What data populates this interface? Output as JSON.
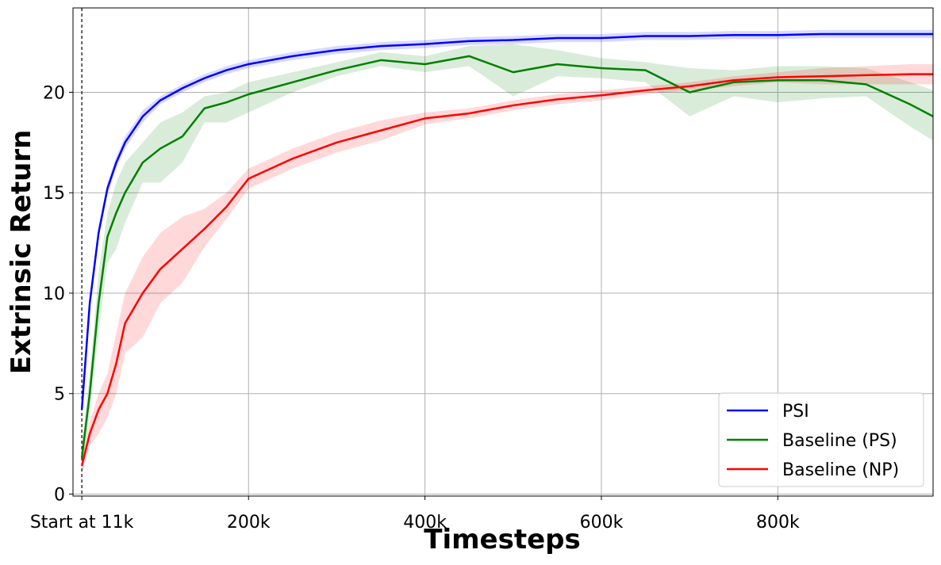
{
  "chart_data": {
    "type": "line",
    "xlabel": "Timesteps",
    "ylabel": "Extrinsic Return",
    "xlim": [
      1000,
      976000
    ],
    "ylim": [
      -0.1,
      24.2
    ],
    "xticks": [
      {
        "value": 11000,
        "label": "Start at 11k"
      },
      {
        "value": 200000,
        "label": "200k"
      },
      {
        "value": 400000,
        "label": "400k"
      },
      {
        "value": 600000,
        "label": "600k"
      },
      {
        "value": 800000,
        "label": "800k"
      }
    ],
    "yticks": [
      0,
      5,
      10,
      15,
      20
    ],
    "marker_line": {
      "x": 11000,
      "style": "dashed"
    },
    "grid": true,
    "legend": "lower right",
    "x": [
      11000,
      20000,
      30000,
      40000,
      50000,
      60000,
      80000,
      100000,
      125000,
      150000,
      175000,
      200000,
      250000,
      300000,
      350000,
      400000,
      450000,
      500000,
      550000,
      600000,
      650000,
      700000,
      750000,
      800000,
      850000,
      900000,
      950000,
      976000
    ],
    "series": [
      {
        "name": "PSI",
        "color": "#0000ff",
        "values": [
          4.2,
          9.5,
          13,
          15.2,
          16.5,
          17.5,
          18.8,
          19.6,
          20.2,
          20.7,
          21.1,
          21.4,
          21.8,
          22.1,
          22.3,
          22.4,
          22.55,
          22.6,
          22.7,
          22.7,
          22.8,
          22.8,
          22.85,
          22.85,
          22.9,
          22.9,
          22.9,
          22.9
        ],
        "lower": [
          3.9,
          9.1,
          12.7,
          14.9,
          16.2,
          17.2,
          18.5,
          19.4,
          20,
          20.5,
          20.9,
          21.2,
          21.6,
          21.9,
          22.1,
          22.2,
          22.35,
          22.4,
          22.5,
          22.5,
          22.6,
          22.6,
          22.65,
          22.65,
          22.7,
          22.7,
          22.7,
          22.7
        ],
        "upper": [
          4.5,
          9.9,
          13.3,
          15.5,
          16.8,
          17.8,
          19.1,
          19.8,
          20.4,
          20.9,
          21.3,
          21.6,
          22,
          22.3,
          22.5,
          22.6,
          22.75,
          22.8,
          22.9,
          22.9,
          23,
          23,
          23.05,
          23.05,
          23.1,
          23.1,
          23.1,
          23.1
        ]
      },
      {
        "name": "Baseline (PS)",
        "color": "#008000",
        "values": [
          1.8,
          5,
          9.5,
          12.8,
          14,
          15,
          16.5,
          17.2,
          17.8,
          19.2,
          19.5,
          19.9,
          20.5,
          21.1,
          21.6,
          21.4,
          21.8,
          21,
          21.4,
          21.2,
          21.1,
          20,
          20.5,
          20.6,
          20.6,
          20.4,
          19.4,
          18.8
        ],
        "lower": [
          1.2,
          4,
          8,
          11.5,
          12.2,
          13.5,
          15.5,
          15.5,
          16.5,
          18.5,
          18.5,
          19,
          20,
          20.8,
          21.3,
          21,
          21.3,
          19.8,
          20.8,
          20.7,
          20.5,
          18.8,
          19.8,
          19.5,
          19.7,
          19.8,
          18.3,
          17.6
        ],
        "upper": [
          2.4,
          6,
          11,
          14,
          15.5,
          16.5,
          17.5,
          18.5,
          19,
          19.8,
          20,
          20.5,
          21,
          21.5,
          22,
          21.8,
          22.3,
          22.4,
          22.1,
          21.7,
          21.5,
          21.2,
          21.1,
          21.3,
          21.3,
          21.2,
          20.5,
          20.1
        ]
      },
      {
        "name": "Baseline (NP)",
        "color": "#ff0000",
        "values": [
          1.4,
          3,
          4.2,
          5,
          6.5,
          8.5,
          10,
          11.2,
          12.2,
          13.2,
          14.3,
          15.7,
          16.7,
          17.5,
          18.1,
          18.7,
          18.95,
          19.35,
          19.65,
          19.85,
          20.1,
          20.3,
          20.6,
          20.75,
          20.8,
          20.85,
          20.9,
          20.9
        ],
        "lower": [
          1,
          2.4,
          3,
          3.8,
          5,
          7,
          7.8,
          9.5,
          10.5,
          12.3,
          13.7,
          15.2,
          16.2,
          17,
          17.6,
          18.4,
          18.7,
          19.1,
          19.4,
          19.6,
          19.9,
          20.1,
          20.3,
          20.5,
          20.4,
          20.4,
          20.4,
          20.4
        ],
        "upper": [
          1.8,
          3.6,
          5,
          6,
          8,
          10,
          11.8,
          13,
          13.8,
          14.2,
          15,
          16.2,
          17.2,
          18,
          18.6,
          19,
          19.2,
          19.6,
          19.9,
          20.1,
          20.3,
          20.5,
          20.8,
          21,
          21.2,
          21.3,
          21.4,
          21.4
        ]
      }
    ]
  }
}
